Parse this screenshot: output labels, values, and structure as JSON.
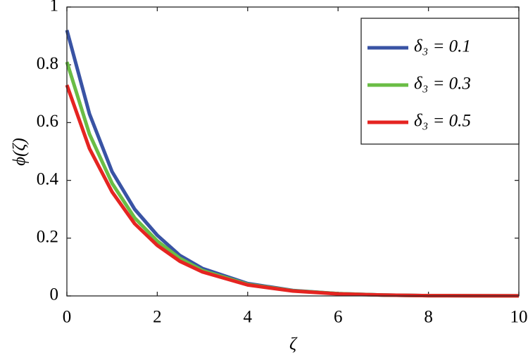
{
  "chart_data": {
    "type": "line",
    "x_label": "ζ",
    "y_label": "ϕ(ζ)",
    "x": [
      0,
      0.5,
      1,
      1.5,
      2,
      2.5,
      3,
      4,
      5,
      6,
      7,
      8,
      9,
      10
    ],
    "series": [
      {
        "name": "δ₃ = 0.1",
        "color": "#3953a4",
        "values": [
          0.92,
          0.63,
          0.43,
          0.3,
          0.21,
          0.14,
          0.095,
          0.043,
          0.019,
          0.008,
          0.003,
          0.001,
          0.0005,
          0.0002
        ]
      },
      {
        "name": "δ₃ = 0.3",
        "color": "#6abd45",
        "values": [
          0.81,
          0.56,
          0.39,
          0.27,
          0.19,
          0.13,
          0.088,
          0.04,
          0.018,
          0.008,
          0.003,
          0.001,
          0.0005,
          0.0002
        ]
      },
      {
        "name": "δ₃ = 0.5",
        "color": "#e52421",
        "values": [
          0.73,
          0.51,
          0.36,
          0.25,
          0.175,
          0.12,
          0.083,
          0.038,
          0.017,
          0.007,
          0.003,
          0.001,
          0.0005,
          0.0002
        ]
      }
    ],
    "xlim": [
      0,
      10
    ],
    "xticks": [
      0,
      2,
      4,
      6,
      8,
      10
    ],
    "ylim": [
      0,
      1
    ],
    "yticks": [
      0,
      0.2,
      0.4,
      0.6,
      0.8,
      1
    ],
    "legend": "upper right",
    "grid": false
  }
}
